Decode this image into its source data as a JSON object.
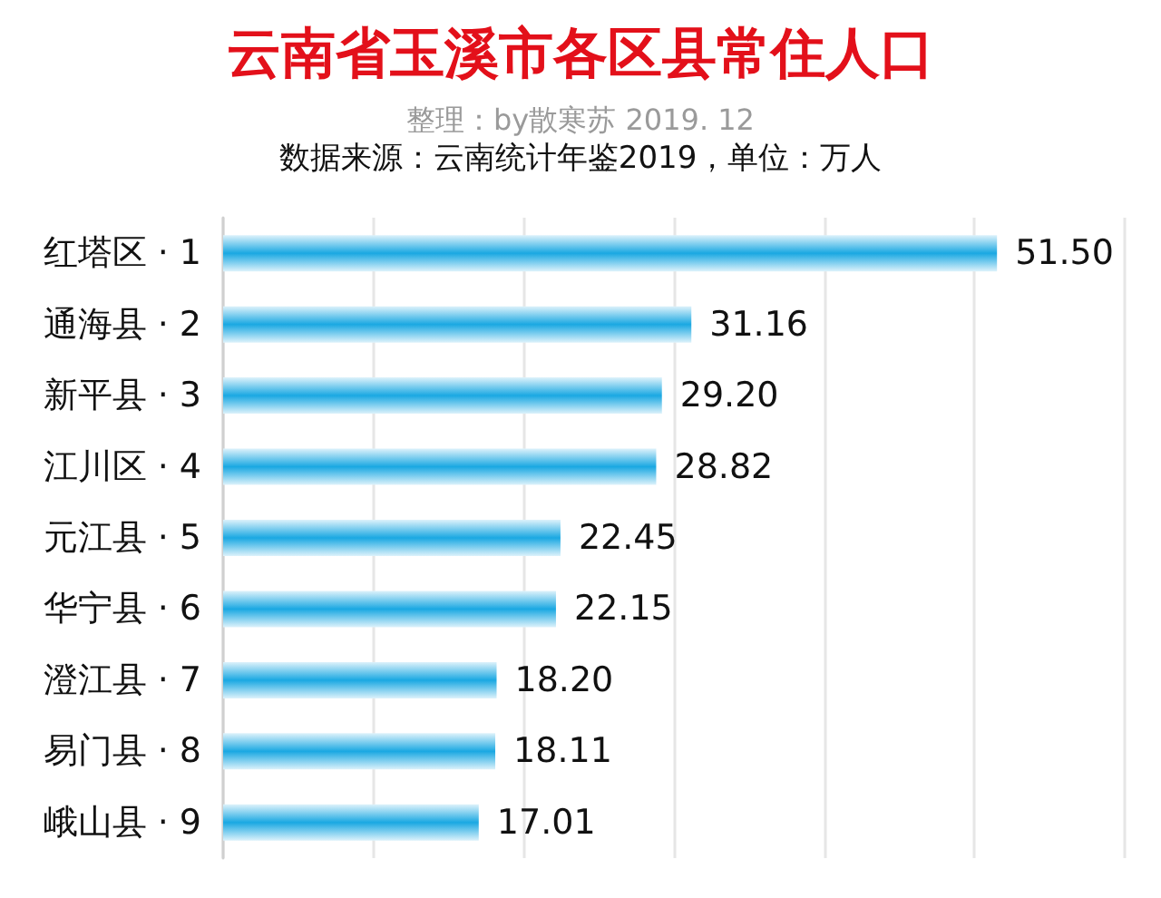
{
  "chart_data": {
    "type": "bar",
    "orientation": "horizontal",
    "title": "云南省玉溪市各区县常住人口",
    "subtitle": "整理：by散寒苏 2019. 12",
    "annotations": [
      "数据来源：云南统计年鉴2019，单位：万人"
    ],
    "categories": [
      "红塔区 · 1",
      "通海县 · 2",
      "新平县 · 3",
      "江川区 · 4",
      "元江县 · 5",
      "华宁县 · 6",
      "澄江县 · 7",
      "易门县 · 8",
      "峨山县 · 9"
    ],
    "values": [
      51.5,
      31.16,
      29.2,
      28.82,
      22.45,
      22.15,
      18.2,
      18.11,
      17.01
    ],
    "value_labels": [
      "51.50",
      "31.16",
      "29.20",
      "28.82",
      "22.45",
      "22.15",
      "18.20",
      "18.11",
      "17.01"
    ],
    "color": "#1aa8e2",
    "xlim": [
      0,
      60
    ],
    "xticks": [
      0,
      10,
      20,
      30,
      40,
      50,
      60
    ],
    "grid": "x",
    "tick_labels": "y"
  }
}
